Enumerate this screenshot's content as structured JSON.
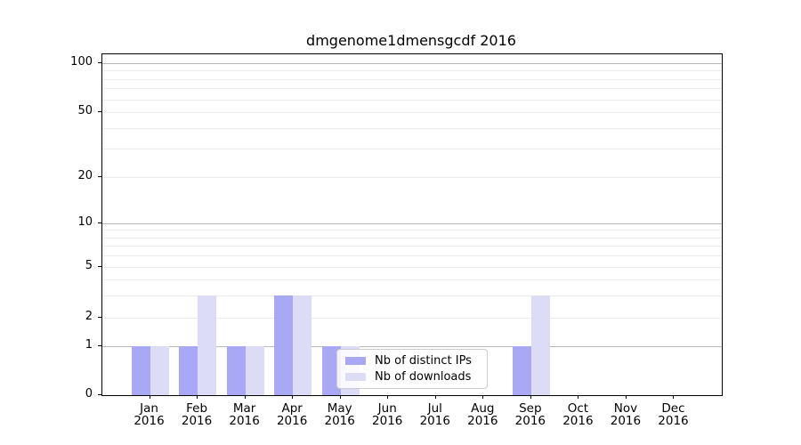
{
  "figure": {
    "title": "dmgenome1dmensgcdf 2016"
  },
  "legend": {
    "items": [
      {
        "label": "Nb of distinct IPs",
        "color": "#a8a8f5"
      },
      {
        "label": "Nb of downloads",
        "color": "#dcdcf6"
      }
    ]
  },
  "chart_data": {
    "type": "bar",
    "title": "dmgenome1dmensgcdf 2016",
    "categories": [
      "Jan 2016",
      "Feb 2016",
      "Mar 2016",
      "Apr 2016",
      "May 2016",
      "Jun 2016",
      "Jul 2016",
      "Aug 2016",
      "Sep 2016",
      "Oct 2016",
      "Nov 2016",
      "Dec 2016"
    ],
    "x_axis": {
      "months": [
        "Jan",
        "Feb",
        "Mar",
        "Apr",
        "May",
        "Jun",
        "Jul",
        "Aug",
        "Sep",
        "Oct",
        "Nov",
        "Dec"
      ],
      "year": "2016"
    },
    "series": [
      {
        "name": "Nb of distinct IPs",
        "color": "#a8a8f5",
        "values": [
          1,
          1,
          1,
          3,
          1,
          0,
          0,
          0,
          1,
          0,
          0,
          0
        ]
      },
      {
        "name": "Nb of downloads",
        "color": "#dcdcf6",
        "values": [
          1,
          3,
          1,
          3,
          1,
          0,
          0,
          0,
          3,
          0,
          0,
          0
        ]
      }
    ],
    "y_axis": {
      "scale": "log-like with 0 baseline",
      "major_ticks": [
        0,
        1,
        2,
        5,
        10,
        20,
        50,
        100
      ],
      "decade_gridlines": [
        1,
        10,
        100
      ],
      "light_major_gridlines": [
        2,
        5,
        20,
        50
      ],
      "minor_gridlines": [
        3,
        4,
        6,
        7,
        8,
        9,
        30,
        40,
        60,
        70,
        80,
        90
      ],
      "ylim": [
        0,
        100
      ]
    },
    "xlabel": "",
    "ylabel": "",
    "grid": "horizontal",
    "legend_position": "lower center, overlapping May bars"
  }
}
